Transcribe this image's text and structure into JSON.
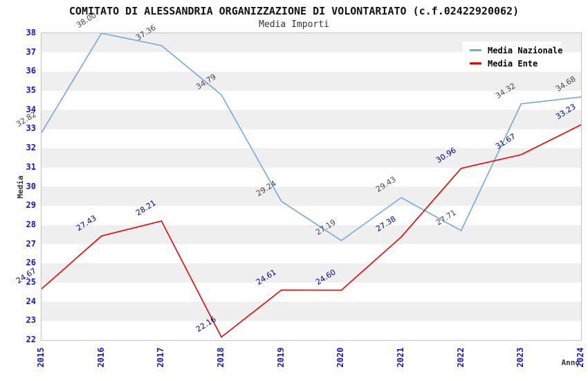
{
  "chart_data": {
    "type": "line",
    "title": "COMITATO DI ALESSANDRIA ORGANIZZAZIONE DI VOLONTARIATO (c.f.02422920062)",
    "subtitle": "Media Importi",
    "xlabel": "Anno",
    "ylabel": "Media",
    "categories": [
      "2015",
      "2016",
      "2017",
      "2018",
      "2019",
      "2020",
      "2021",
      "2022",
      "2023",
      "2024"
    ],
    "ylim": [
      22,
      38
    ],
    "y_tick_step": 1,
    "grid": "alternating-horizontal-bands",
    "legend_position": "top-right",
    "value_label_decimals": 2,
    "series": [
      {
        "name": "Media Nazionale",
        "color": "#74a7e0",
        "label_color": "#444444",
        "values": [
          32.82,
          38.0,
          37.36,
          34.79,
          29.24,
          27.19,
          29.43,
          27.71,
          34.32,
          34.68
        ]
      },
      {
        "name": "Media Ente",
        "color": "#ee0000",
        "label_color": "#000080",
        "values": [
          24.67,
          27.43,
          28.21,
          22.16,
          24.61,
          24.6,
          27.38,
          30.96,
          31.67,
          33.23
        ]
      }
    ]
  },
  "colors": {
    "axis_tick_labels": "#1515cd",
    "axis_titles": "#333333",
    "band_gray": "#efefef",
    "plot_border": "#c3c3c3",
    "title_text": "#111111",
    "subtitle_text": "#333333",
    "legend_text": "#000000"
  }
}
